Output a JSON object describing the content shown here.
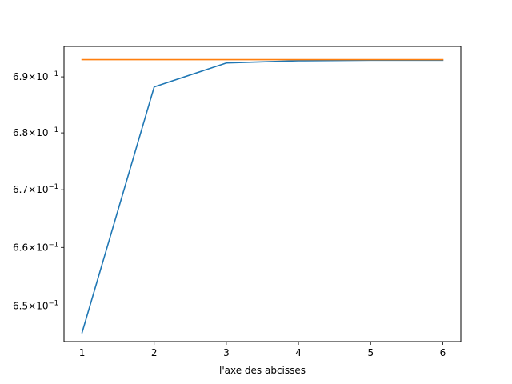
{
  "chart_data": {
    "type": "line",
    "xlabel": "l'axe des abcisses",
    "ylabel": "",
    "yscale": "log",
    "xlim": [
      0.75,
      6.25
    ],
    "ylim": [
      0.644,
      0.6955
    ],
    "x_ticks": [
      {
        "value": 1,
        "label": "1"
      },
      {
        "value": 2,
        "label": "2"
      },
      {
        "value": 3,
        "label": "3"
      },
      {
        "value": 4,
        "label": "4"
      },
      {
        "value": 5,
        "label": "5"
      },
      {
        "value": 6,
        "label": "6"
      }
    ],
    "y_ticks": [
      {
        "value": 0.65,
        "mantissa": "6.5",
        "base": "10",
        "exponent": "−1"
      },
      {
        "value": 0.66,
        "mantissa": "6.6",
        "base": "10",
        "exponent": "−1"
      },
      {
        "value": 0.67,
        "mantissa": "6.7",
        "base": "10",
        "exponent": "−1"
      },
      {
        "value": 0.68,
        "mantissa": "6.8",
        "base": "10",
        "exponent": "−1"
      },
      {
        "value": 0.69,
        "mantissa": "6.9",
        "base": "10",
        "exponent": "−1"
      }
    ],
    "grid": false,
    "series": [
      {
        "color": "#1f77b4",
        "x": [
          1,
          2,
          3,
          4,
          5,
          6
        ],
        "y": [
          0.6455,
          0.6882,
          0.6925,
          0.6929,
          0.693,
          0.693
        ]
      },
      {
        "color": "#ff7f0e",
        "x": [
          1,
          2,
          3,
          4,
          5,
          6
        ],
        "y": [
          0.6931,
          0.6931,
          0.6931,
          0.6931,
          0.6931,
          0.6931
        ]
      }
    ]
  }
}
